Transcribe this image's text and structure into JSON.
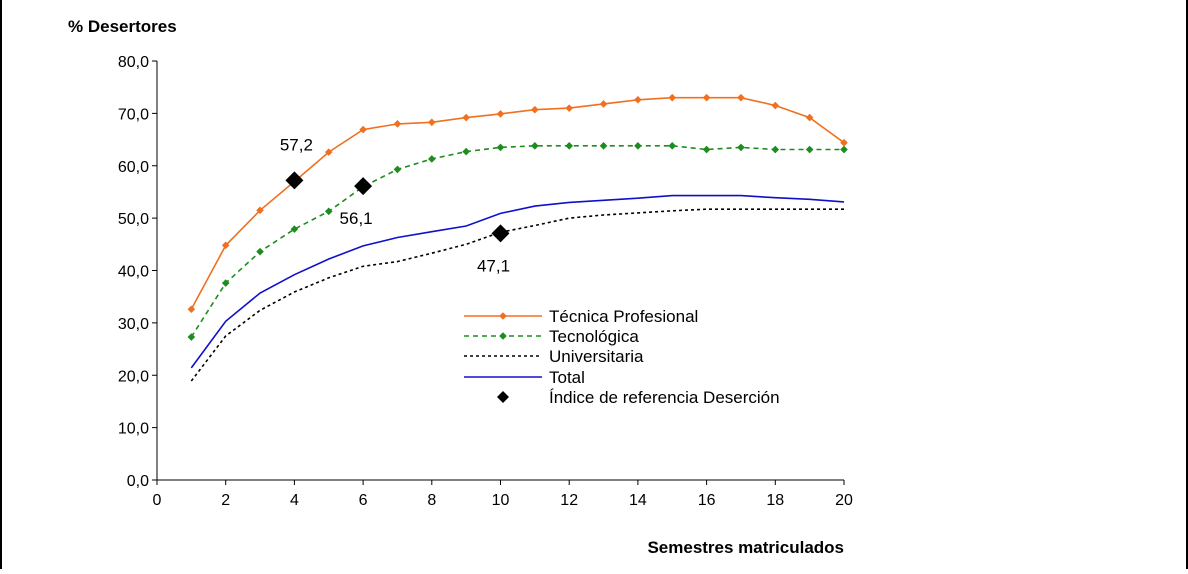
{
  "chart_data": {
    "type": "line",
    "ylabel": "% Desertores",
    "xlabel": "Semestres matriculados",
    "xlim": [
      0,
      20
    ],
    "ylim": [
      0,
      80
    ],
    "x_ticks": [
      "0",
      "2",
      "4",
      "6",
      "8",
      "10",
      "12",
      "14",
      "16",
      "18",
      "20"
    ],
    "y_ticks": [
      "0,0",
      "10,0",
      "20,0",
      "30,0",
      "40,0",
      "50,0",
      "60,0",
      "70,0",
      "80,0"
    ],
    "grid": false,
    "legend_position": "center-right",
    "series": [
      {
        "name": "Técnica Profesional",
        "color": "#F07020",
        "style": "solid-markers",
        "x": [
          1,
          2,
          3,
          4,
          5,
          6,
          7,
          8,
          9,
          10,
          11,
          12,
          13,
          14,
          15,
          16,
          17,
          18,
          19,
          20
        ],
        "values": [
          32.6,
          44.8,
          51.5,
          57.0,
          62.6,
          66.9,
          68.0,
          68.3,
          69.2,
          69.9,
          70.7,
          71.0,
          71.8,
          72.6,
          73.0,
          73.0,
          73.0,
          71.5,
          69.2,
          64.4
        ]
      },
      {
        "name": "Tecnológica",
        "color": "#1E8C1E",
        "style": "dashed-markers",
        "x": [
          1,
          2,
          3,
          4,
          5,
          6,
          7,
          8,
          9,
          10,
          11,
          12,
          13,
          14,
          15,
          16,
          17,
          18,
          19,
          20
        ],
        "values": [
          27.3,
          37.6,
          43.6,
          47.9,
          51.3,
          56.0,
          59.3,
          61.3,
          62.7,
          63.5,
          63.8,
          63.8,
          63.8,
          63.8,
          63.8,
          63.1,
          63.5,
          63.1,
          63.1,
          63.1
        ]
      },
      {
        "name": "Universitaria",
        "color": "#000000",
        "style": "dotted",
        "x": [
          1,
          2,
          3,
          4,
          5,
          6,
          7,
          8,
          9,
          10,
          11,
          12,
          13,
          14,
          15,
          16,
          17,
          18,
          19,
          20
        ],
        "values": [
          18.9,
          27.5,
          32.4,
          35.9,
          38.6,
          40.8,
          41.7,
          43.3,
          45.0,
          47.3,
          48.6,
          50.0,
          50.6,
          51.0,
          51.4,
          51.7,
          51.7,
          51.7,
          51.7,
          51.7
        ]
      },
      {
        "name": "Total",
        "color": "#1010CC",
        "style": "solid",
        "x": [
          1,
          2,
          3,
          4,
          5,
          6,
          7,
          8,
          9,
          10,
          11,
          12,
          13,
          14,
          15,
          16,
          17,
          18,
          19,
          20
        ],
        "values": [
          21.4,
          30.3,
          35.7,
          39.2,
          42.2,
          44.7,
          46.3,
          47.4,
          48.5,
          50.9,
          52.3,
          53.0,
          53.4,
          53.8,
          54.3,
          54.3,
          54.3,
          53.9,
          53.6,
          53.1
        ]
      }
    ],
    "reference_points": {
      "name": "Índice de referencia Deserción",
      "color": "#000000",
      "points": [
        {
          "x": 4,
          "y": 57.2,
          "label": "57,2",
          "label_pos": "above"
        },
        {
          "x": 6,
          "y": 56.1,
          "label": "56,1",
          "label_pos": "below"
        },
        {
          "x": 10,
          "y": 47.1,
          "label": "47,1",
          "label_pos": "below"
        }
      ]
    }
  }
}
